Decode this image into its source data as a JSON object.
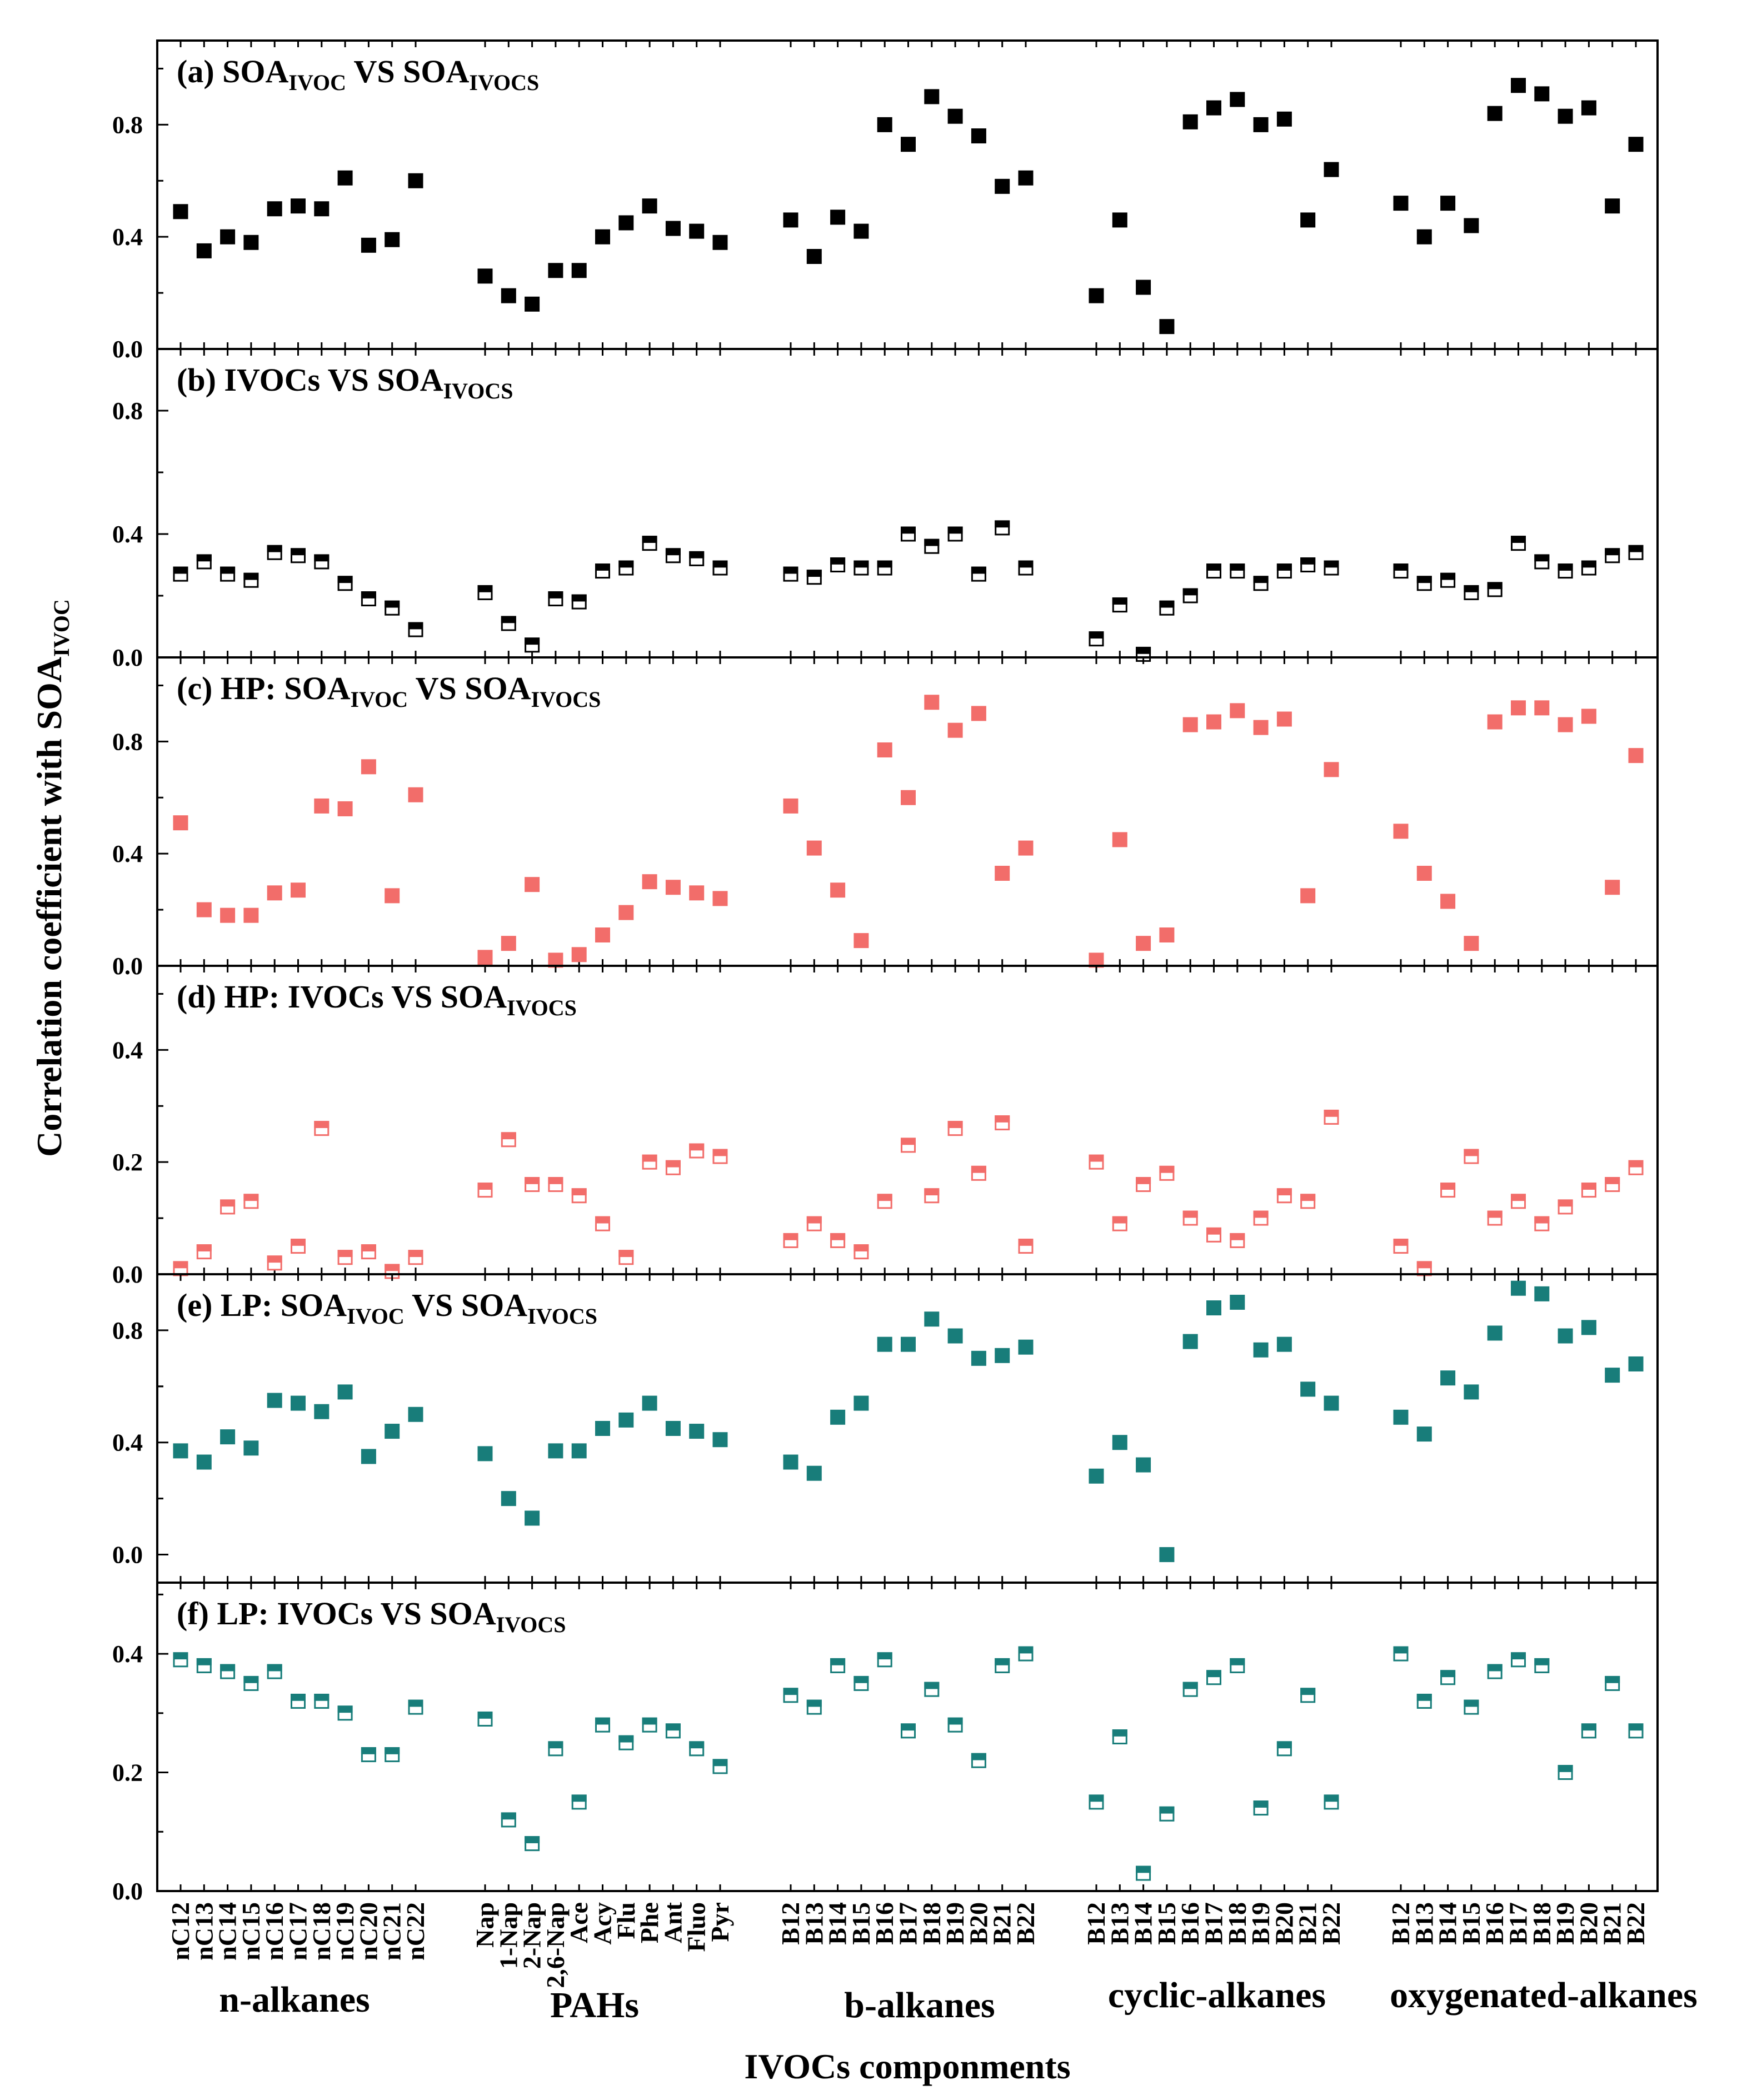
{
  "chart_data": {
    "type": "scatter",
    "x_title": "IVOCs componments",
    "y_title": {
      "main": "Correlation coefficient with SOA",
      "sub": "IVOC"
    },
    "groups": [
      {
        "name": "n-alkanes",
        "categories": [
          "nC12",
          "nC13",
          "nC14",
          "nC15",
          "nC16",
          "nC17",
          "nC18",
          "nC19",
          "nC20",
          "nC21",
          "nC22"
        ]
      },
      {
        "name": "PAHs",
        "categories": [
          "Nap",
          "1-Nap",
          "2-Nap",
          "2,6-Nap",
          "Ace",
          "Acy",
          "Flu",
          "Phe",
          "Ant",
          "Fluo",
          "Pyr"
        ]
      },
      {
        "name": "b-alkanes",
        "categories": [
          "B12",
          "B13",
          "B14",
          "B15",
          "B16",
          "B17",
          "B18",
          "B19",
          "B20",
          "B21",
          "B22"
        ]
      },
      {
        "name": "cyclic-alkanes",
        "categories": [
          "B12",
          "B13",
          "B14",
          "B15",
          "B16",
          "B17",
          "B18",
          "B19",
          "B20",
          "B21",
          "B22"
        ]
      },
      {
        "name": "oxygenated-alkanes",
        "categories": [
          "B12",
          "B13",
          "B14",
          "B15",
          "B16",
          "B17",
          "B18",
          "B19",
          "B20",
          "B21",
          "B22"
        ]
      }
    ],
    "panels": [
      {
        "title": [
          {
            "t": "(a) SOA",
            "sub": false
          },
          {
            "t": "IVOC",
            "sub": true
          },
          {
            "t": " VS SOA",
            "sub": false
          },
          {
            "t": "IVOCS",
            "sub": true
          }
        ],
        "marker": "filled",
        "color": "#000000",
        "ylim": [
          0,
          1.1
        ],
        "yticks": [
          0.0,
          0.4,
          0.8
        ],
        "ytick_labels": [
          "0.0",
          "0.4",
          "0.8"
        ],
        "values": [
          [
            0.49,
            0.35,
            0.4,
            0.38,
            0.5,
            0.51,
            0.5,
            0.61,
            0.37,
            0.39,
            0.6
          ],
          [
            0.26,
            0.19,
            0.16,
            0.28,
            0.28,
            0.4,
            0.45,
            0.51,
            0.43,
            0.42,
            0.38
          ],
          [
            0.46,
            0.33,
            0.47,
            0.42,
            0.8,
            0.73,
            0.9,
            0.83,
            0.76,
            0.58,
            0.61
          ],
          [
            0.19,
            0.46,
            0.22,
            0.08,
            0.81,
            0.86,
            0.89,
            0.8,
            0.82,
            0.46,
            0.64
          ],
          [
            0.52,
            0.4,
            0.52,
            0.44,
            0.84,
            0.94,
            0.91,
            0.83,
            0.86,
            0.51,
            0.73
          ]
        ]
      },
      {
        "title": [
          {
            "t": "(b) IVOCs VS SOA",
            "sub": false
          },
          {
            "t": "IVOCS",
            "sub": true
          }
        ],
        "marker": "half",
        "color": "#000000",
        "ylim": [
          0,
          1.0
        ],
        "yticks": [
          0.0,
          0.4,
          0.8
        ],
        "ytick_labels": [
          "0.0",
          "0.4",
          "0.8"
        ],
        "values": [
          [
            0.27,
            0.31,
            0.27,
            0.25,
            0.34,
            0.33,
            0.31,
            0.24,
            0.19,
            0.16,
            0.09
          ],
          [
            0.21,
            0.11,
            0.04,
            0.19,
            0.18,
            0.28,
            0.29,
            0.37,
            0.33,
            0.32,
            0.29
          ],
          [
            0.27,
            0.26,
            0.3,
            0.29,
            0.29,
            0.4,
            0.36,
            0.4,
            0.27,
            0.42,
            0.29
          ],
          [
            0.06,
            0.17,
            0.01,
            0.16,
            0.2,
            0.28,
            0.28,
            0.24,
            0.28,
            0.3,
            0.29
          ],
          [
            0.28,
            0.24,
            0.25,
            0.21,
            0.22,
            0.37,
            0.31,
            0.28,
            0.29,
            0.33,
            0.34
          ]
        ]
      },
      {
        "title": [
          {
            "t": "(c) HP: SOA",
            "sub": false
          },
          {
            "t": "IVOC",
            "sub": true
          },
          {
            "t": " VS SOA",
            "sub": false
          },
          {
            "t": "IVOCS",
            "sub": true
          }
        ],
        "marker": "filled",
        "color": "#f26d6a",
        "ylim": [
          0,
          1.1
        ],
        "yticks": [
          0.0,
          0.4,
          0.8
        ],
        "ytick_labels": [
          "0.0",
          "0.4",
          "0.8"
        ],
        "values": [
          [
            0.51,
            0.2,
            0.18,
            0.18,
            0.26,
            0.27,
            0.57,
            0.56,
            0.71,
            0.25,
            0.61
          ],
          [
            0.03,
            0.08,
            0.29,
            0.02,
            0.04,
            0.11,
            0.19,
            0.3,
            0.28,
            0.26,
            0.24
          ],
          [
            0.57,
            0.42,
            0.27,
            0.09,
            0.77,
            0.6,
            0.94,
            0.84,
            0.9,
            0.33,
            0.42
          ],
          [
            0.02,
            0.45,
            0.08,
            0.11,
            0.86,
            0.87,
            0.91,
            0.85,
            0.88,
            0.25,
            0.7
          ],
          [
            0.48,
            0.33,
            0.23,
            0.08,
            0.87,
            0.92,
            0.92,
            0.86,
            0.89,
            0.28,
            0.75
          ]
        ]
      },
      {
        "title": [
          {
            "t": "(d) HP: IVOCs VS SOA",
            "sub": false
          },
          {
            "t": "IVOCS",
            "sub": true
          }
        ],
        "marker": "half",
        "color": "#f26d6a",
        "ylim": [
          0,
          0.55
        ],
        "yticks": [
          0.0,
          0.2,
          0.4
        ],
        "ytick_labels": [
          "0.0",
          "0.2",
          "0.4"
        ],
        "values": [
          [
            0.01,
            0.04,
            0.12,
            0.13,
            0.02,
            0.05,
            0.26,
            0.03,
            0.04,
            0.005,
            0.03
          ],
          [
            0.15,
            0.24,
            0.16,
            0.16,
            0.14,
            0.09,
            0.03,
            0.2,
            0.19,
            0.22,
            0.21
          ],
          [
            0.06,
            0.09,
            0.06,
            0.04,
            0.13,
            0.23,
            0.14,
            0.26,
            0.18,
            0.27,
            0.05
          ],
          [
            0.2,
            0.09,
            0.16,
            0.18,
            0.1,
            0.07,
            0.06,
            0.1,
            0.14,
            0.13,
            0.28
          ],
          [
            0.05,
            0.01,
            0.15,
            0.21,
            0.1,
            0.13,
            0.09,
            0.12,
            0.15,
            0.16,
            0.19
          ]
        ]
      },
      {
        "title": [
          {
            "t": "(e) LP: SOA",
            "sub": false
          },
          {
            "t": "IVOC",
            "sub": true
          },
          {
            "t": " VS SOA",
            "sub": false
          },
          {
            "t": "IVOCS",
            "sub": true
          }
        ],
        "marker": "filled",
        "color": "#187d7a",
        "ylim": [
          -0.1,
          1.0
        ],
        "yticks": [
          0.0,
          0.4,
          0.8
        ],
        "ytick_labels": [
          "0.0",
          "0.4",
          "0.8"
        ],
        "values": [
          [
            0.37,
            0.33,
            0.42,
            0.38,
            0.55,
            0.54,
            0.51,
            0.58,
            0.35,
            0.44,
            0.5
          ],
          [
            0.36,
            0.2,
            0.13,
            0.37,
            0.37,
            0.45,
            0.48,
            0.54,
            0.45,
            0.44,
            0.41
          ],
          [
            0.33,
            0.29,
            0.49,
            0.54,
            0.75,
            0.75,
            0.84,
            0.78,
            0.7,
            0.71,
            0.74
          ],
          [
            0.28,
            0.4,
            0.32,
            0.0,
            0.76,
            0.88,
            0.9,
            0.73,
            0.75,
            0.59,
            0.54
          ],
          [
            0.49,
            0.43,
            0.63,
            0.58,
            0.79,
            0.95,
            0.93,
            0.78,
            0.81,
            0.64,
            0.68
          ]
        ]
      },
      {
        "title": [
          {
            "t": "(f) LP: IVOCs VS SOA",
            "sub": false
          },
          {
            "t": "IVOCS",
            "sub": true
          }
        ],
        "marker": "half",
        "color": "#187d7a",
        "ylim": [
          0,
          0.52
        ],
        "yticks": [
          0.0,
          0.2,
          0.4
        ],
        "ytick_labels": [
          "0.0",
          "0.2",
          "0.4"
        ],
        "values": [
          [
            0.39,
            0.38,
            0.37,
            0.35,
            0.37,
            0.32,
            0.32,
            0.3,
            0.23,
            0.23,
            0.31
          ],
          [
            0.29,
            0.12,
            0.08,
            0.24,
            0.15,
            0.28,
            0.25,
            0.28,
            0.27,
            0.24,
            0.21
          ],
          [
            0.33,
            0.31,
            0.38,
            0.35,
            0.39,
            0.27,
            0.34,
            0.28,
            0.22,
            0.38,
            0.4
          ],
          [
            0.15,
            0.26,
            0.03,
            0.13,
            0.34,
            0.36,
            0.38,
            0.14,
            0.24,
            0.33,
            0.15
          ],
          [
            0.4,
            0.32,
            0.36,
            0.31,
            0.37,
            0.39,
            0.38,
            0.2,
            0.27,
            0.35,
            0.27
          ]
        ]
      }
    ]
  }
}
